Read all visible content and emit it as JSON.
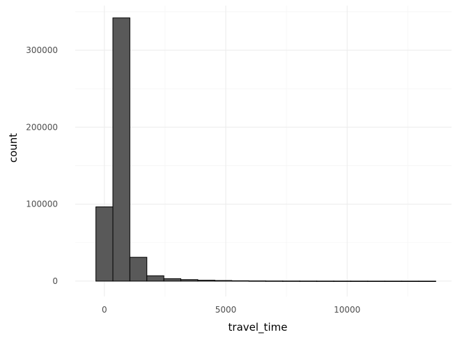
{
  "chart_data": {
    "type": "bar",
    "title": "",
    "xlabel": "travel_time",
    "ylabel": "count",
    "bin_width": 700,
    "bins": [
      {
        "x0": -350,
        "x1": 350,
        "count": 96500
      },
      {
        "x0": 350,
        "x1": 1050,
        "count": 342000
      },
      {
        "x0": 1050,
        "x1": 1750,
        "count": 31000
      },
      {
        "x0": 1750,
        "x1": 2450,
        "count": 7000
      },
      {
        "x0": 2450,
        "x1": 3150,
        "count": 3200
      },
      {
        "x0": 3150,
        "x1": 3850,
        "count": 2000
      },
      {
        "x0": 3850,
        "x1": 4550,
        "count": 1200
      },
      {
        "x0": 4550,
        "x1": 5250,
        "count": 800
      },
      {
        "x0": 5250,
        "x1": 5950,
        "count": 500
      },
      {
        "x0": 5950,
        "x1": 6650,
        "count": 350
      },
      {
        "x0": 6650,
        "x1": 7350,
        "count": 250
      },
      {
        "x0": 7350,
        "x1": 8050,
        "count": 200
      },
      {
        "x0": 8050,
        "x1": 8750,
        "count": 150
      },
      {
        "x0": 8750,
        "x1": 9450,
        "count": 120
      },
      {
        "x0": 9450,
        "x1": 10150,
        "count": 100
      },
      {
        "x0": 10150,
        "x1": 10850,
        "count": 80
      },
      {
        "x0": 10850,
        "x1": 11550,
        "count": 60
      },
      {
        "x0": 11550,
        "x1": 12250,
        "count": 50
      },
      {
        "x0": 12250,
        "x1": 12950,
        "count": 40
      },
      {
        "x0": 12950,
        "x1": 13650,
        "count": 30
      }
    ],
    "xlim": [
      -1200,
      14300
    ],
    "ylim": [
      -20000,
      358000
    ],
    "x_ticks": [
      0,
      5000,
      10000
    ],
    "x_tick_labels": [
      "0",
      "5000",
      "10000"
    ],
    "y_ticks": [
      0,
      100000,
      200000,
      300000
    ],
    "y_tick_labels": [
      "0",
      "100000",
      "200000",
      "300000"
    ],
    "grid": true,
    "legend": "none",
    "colors": {
      "bar_fill": "#595959",
      "bar_stroke": "#000000",
      "grid_major": "#ebebeb",
      "grid_minor": "#f5f5f5"
    }
  }
}
